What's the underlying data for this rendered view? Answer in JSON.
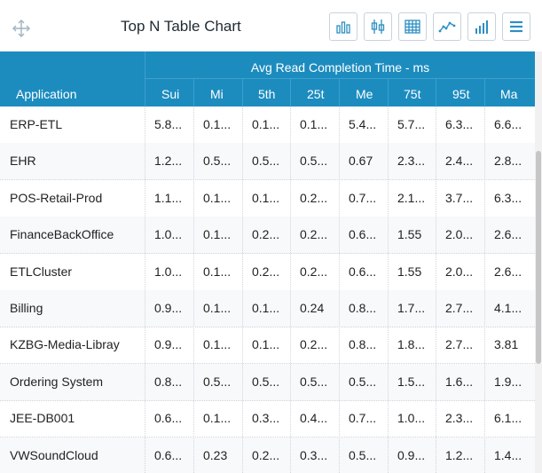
{
  "header": {
    "title": "Top N Table Chart",
    "toolbar": [
      {
        "name": "bar-chart-button",
        "icon": "bar-chart-icon"
      },
      {
        "name": "box-plot-button",
        "icon": "box-plot-icon"
      },
      {
        "name": "table-view-button",
        "icon": "table-icon"
      },
      {
        "name": "line-chart-button",
        "icon": "line-chart-icon"
      },
      {
        "name": "column-chart-button",
        "icon": "column-chart-icon"
      },
      {
        "name": "menu-button",
        "icon": "hamburger-menu-icon"
      }
    ]
  },
  "table": {
    "app_header": "Application",
    "group_header": "Avg Read Completion Time - ms",
    "columns": [
      "Sui",
      "Mi",
      "5th",
      "25t",
      "Me",
      "75t",
      "95t",
      "Ma"
    ],
    "rows": [
      {
        "app": "ERP-ETL",
        "values": [
          "5.8...",
          "0.1...",
          "0.1...",
          "0.1...",
          "5.4...",
          "5.7...",
          "6.3...",
          "6.6..."
        ]
      },
      {
        "app": "EHR",
        "values": [
          "1.2...",
          "0.5...",
          "0.5...",
          "0.5...",
          "0.67",
          "2.3...",
          "2.4...",
          "2.8..."
        ]
      },
      {
        "app": "POS-Retail-Prod",
        "values": [
          "1.1...",
          "0.1...",
          "0.1...",
          "0.2...",
          "0.7...",
          "2.1...",
          "3.7...",
          "6.3..."
        ]
      },
      {
        "app": "FinanceBackOffice",
        "values": [
          "1.0...",
          "0.1...",
          "0.2...",
          "0.2...",
          "0.6...",
          "1.55",
          "2.0...",
          "2.6..."
        ]
      },
      {
        "app": "ETLCluster",
        "values": [
          "1.0...",
          "0.1...",
          "0.2...",
          "0.2...",
          "0.6...",
          "1.55",
          "2.0...",
          "2.6..."
        ]
      },
      {
        "app": "Billing",
        "values": [
          "0.9...",
          "0.1...",
          "0.1...",
          "0.24",
          "0.8...",
          "1.7...",
          "2.7...",
          "4.1..."
        ]
      },
      {
        "app": "KZBG-Media-Libray",
        "values": [
          "0.9...",
          "0.1...",
          "0.1...",
          "0.2...",
          "0.8...",
          "1.8...",
          "2.7...",
          "3.81"
        ]
      },
      {
        "app": "Ordering System",
        "values": [
          "0.8...",
          "0.5...",
          "0.5...",
          "0.5...",
          "0.5...",
          "1.5...",
          "1.6...",
          "1.9..."
        ]
      },
      {
        "app": "JEE-DB001",
        "values": [
          "0.6...",
          "0.1...",
          "0.3...",
          "0.4...",
          "0.7...",
          "1.0...",
          "2.3...",
          "6.1..."
        ]
      },
      {
        "app": "VWSoundCloud",
        "values": [
          "0.6...",
          "0.23",
          "0.2...",
          "0.3...",
          "0.5...",
          "0.9...",
          "1.2...",
          "1.4..."
        ]
      }
    ]
  },
  "colors": {
    "header_bg": "#1c8cbf",
    "accent": "#2c8fc4",
    "row_alt": "#f7f9fb"
  }
}
